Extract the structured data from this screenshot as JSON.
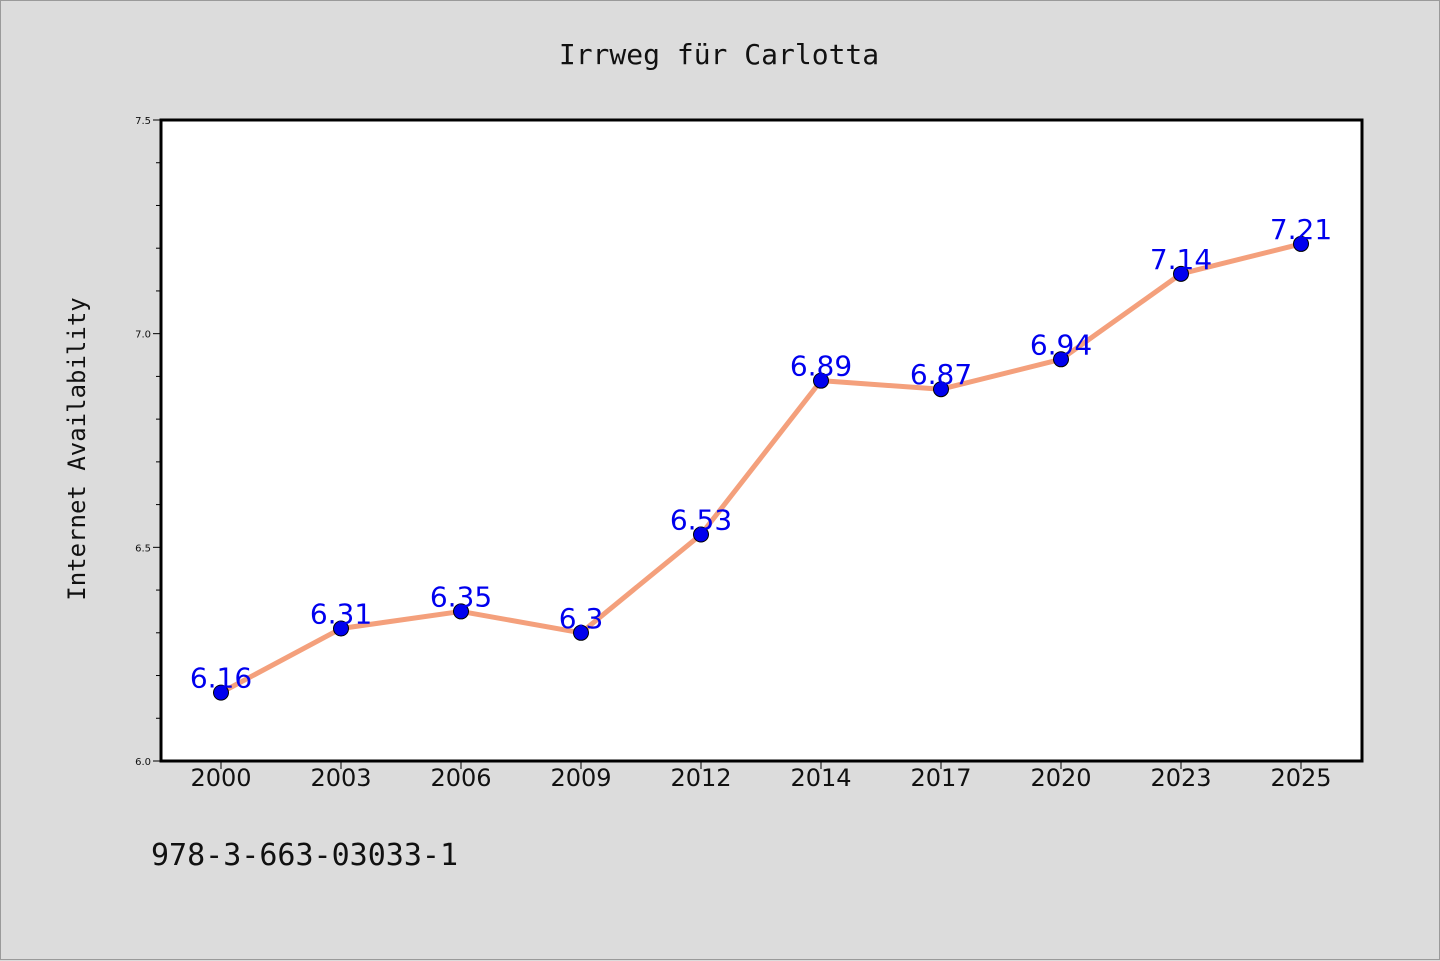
{
  "chart_data": {
    "type": "line",
    "title": "Irrweg für Carlotta",
    "xlabel": "",
    "ylabel": "Internet Availability",
    "categories": [
      "2000",
      "2003",
      "2006",
      "2009",
      "2012",
      "2014",
      "2017",
      "2020",
      "2023",
      "2025"
    ],
    "series": [
      {
        "values": [
          6.16,
          6.31,
          6.35,
          6.3,
          6.53,
          6.89,
          6.87,
          6.94,
          7.14,
          7.21
        ],
        "line_color": "#f4a07c",
        "marker_color": "#0000ee",
        "label_color": "#0000ee"
      }
    ],
    "data_labels": [
      "6.16",
      "6.31",
      "6.35",
      "6.3",
      "6.53",
      "6.89",
      "6.87",
      "6.94",
      "7.14",
      "7.21"
    ],
    "ylim": [
      6.0,
      7.5
    ],
    "yticks": [
      "6.0",
      "6.5",
      "7.0",
      "7.5"
    ],
    "yticks_minor_step": 0.1,
    "grid": false,
    "legend": "none"
  },
  "footer": {
    "isbn": "978-3-663-03033-1"
  },
  "colors": {
    "background": "#dcdcdc",
    "plot_background": "#ffffff",
    "axis": "#000000"
  }
}
